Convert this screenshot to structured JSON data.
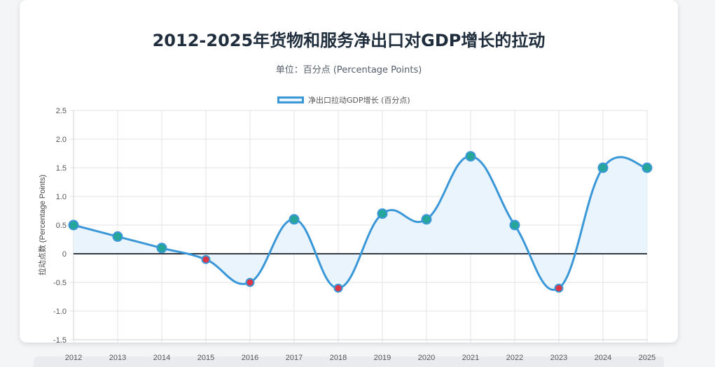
{
  "chart_data": {
    "type": "line",
    "title": "2012-2025年货物和服务净出口对GDP增长的拉动",
    "subtitle": "单位：百分点 (Percentage Points)",
    "ylabel": "拉动点数 (Percentage Points)",
    "xlabel": "",
    "categories": [
      "2012",
      "2013",
      "2014",
      "2015",
      "2016",
      "2017",
      "2018",
      "2019",
      "2020",
      "2021",
      "2022",
      "2023",
      "2024",
      "2025"
    ],
    "series": [
      {
        "name": "净出口拉动GDP增长 (百分点)",
        "values": [
          0.5,
          0.3,
          0.1,
          -0.1,
          -0.5,
          0.6,
          -0.6,
          0.7,
          0.6,
          1.7,
          0.5,
          -0.6,
          1.5,
          1.5
        ]
      }
    ],
    "ylim": [
      -1.5,
      2.5
    ],
    "yticks": [
      "2.5",
      "2.0",
      "1.5",
      "1.0",
      "0.5",
      "0",
      "-0.5",
      "-1.0",
      "-1.5"
    ],
    "yticks_values": [
      2.5,
      2.0,
      1.5,
      1.0,
      0.5,
      0,
      -0.5,
      -1.0,
      -1.5
    ],
    "grid": true,
    "legend_position": "top",
    "colors": {
      "line": "#3a97d8",
      "fill": "#eaf4fc",
      "positive_point": "#26a69a",
      "negative_point": "#dc3545",
      "zero_line": "#333a44"
    }
  }
}
